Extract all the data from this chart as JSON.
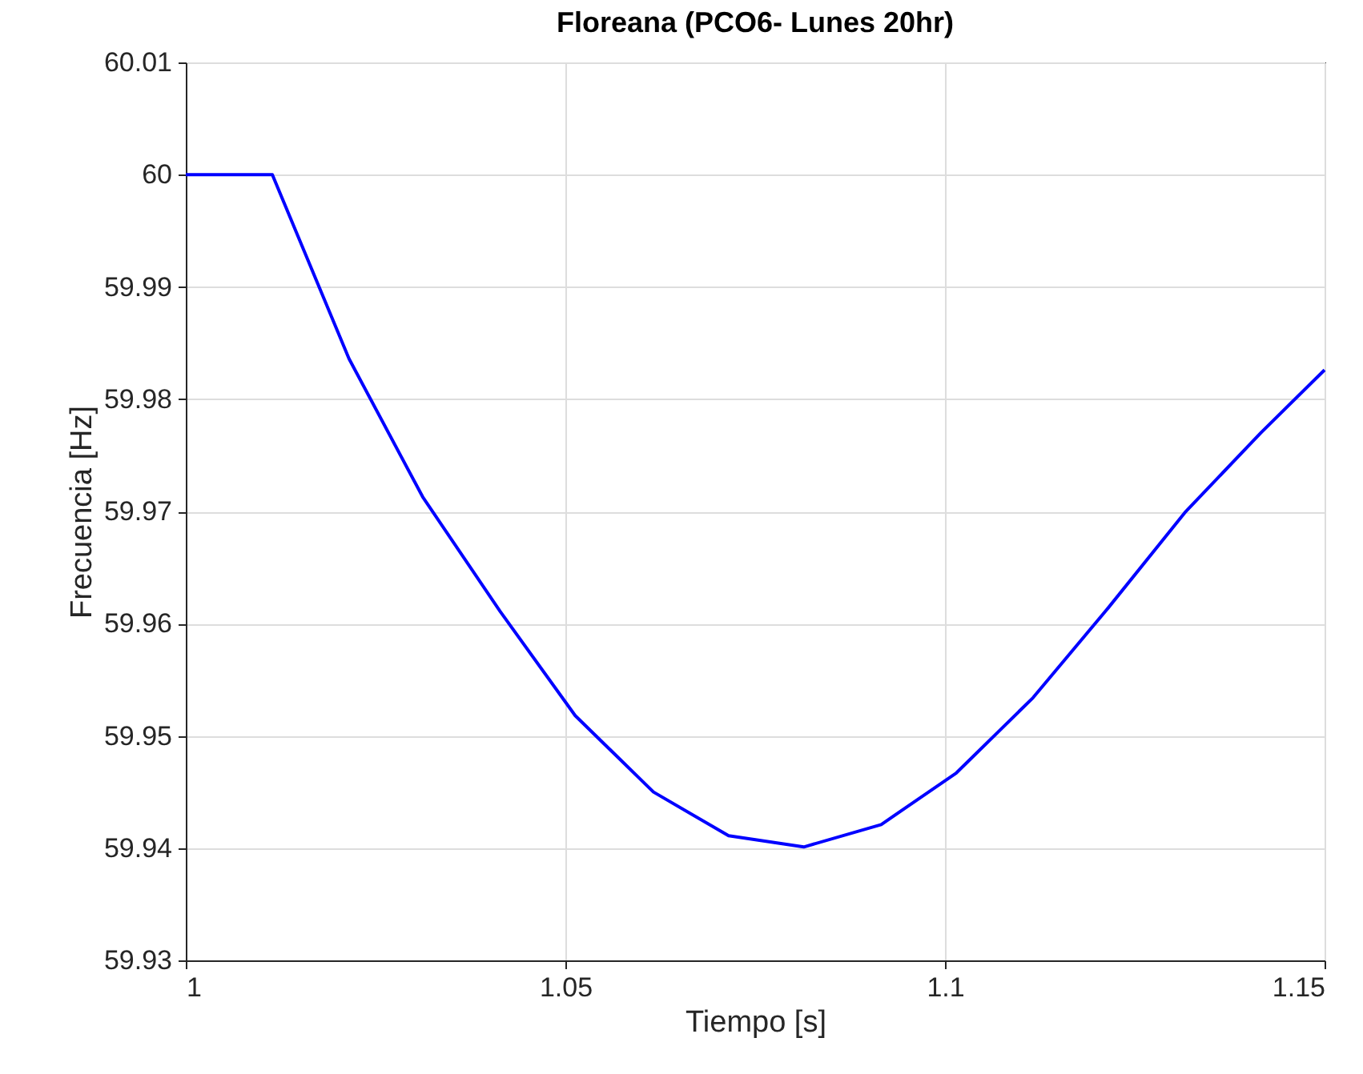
{
  "chart_data": {
    "type": "line",
    "title": "Floreana (PCO6- Lunes 20hr)",
    "xlabel": "Tiempo [s]",
    "ylabel": "Frecuencia [Hz]",
    "x": [
      1,
      1.0114,
      1.0215,
      1.0312,
      1.0414,
      1.0513,
      1.0616,
      1.0715,
      1.0814,
      1.0916,
      1.1015,
      1.1116,
      1.1215,
      1.1316,
      1.1416,
      1.15
    ],
    "series": [
      {
        "color": "#0000ff",
        "values": [
          60.0,
          60.0,
          59.9836,
          59.9713,
          59.9611,
          59.9518,
          59.945,
          59.9411,
          59.9401,
          59.9421,
          59.9467,
          59.9534,
          59.9614,
          59.9699,
          59.977,
          59.9826
        ]
      }
    ],
    "xlim": [
      1,
      1.15
    ],
    "xticks": [
      1,
      1.05,
      1.1,
      1.15
    ],
    "ylim": [
      59.93,
      60.01
    ],
    "yticks": [
      59.93,
      59.94,
      59.95,
      59.96,
      59.97,
      59.98,
      59.99,
      60,
      60.01
    ],
    "grid": true,
    "marker": "none",
    "line_style": "solid"
  }
}
